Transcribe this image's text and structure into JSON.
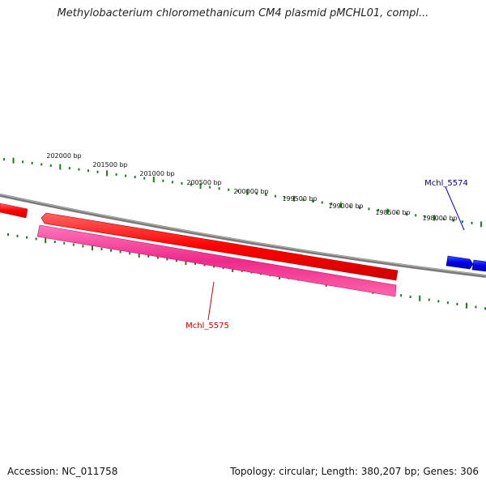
{
  "title": "Methylobacterium chloromethanicum CM4 plasmid pMCHL01, compl...",
  "footer": {
    "accession": "Accession: NC_011758",
    "topology": "Topology: circular; Length: 380,207 bp; Genes: 306"
  },
  "ruler": {
    "labels": [
      "202000 bp",
      "201500 bp",
      "201000 bp",
      "200500 bp",
      "200000 bp",
      "199500 bp",
      "199000 bp",
      "198500 bp",
      "198000 bp"
    ],
    "tick_color": "#1a7f1a"
  },
  "backbone": {
    "color": "#808080"
  },
  "genes": [
    {
      "id": "mchl-5575",
      "label": "Mchl_5575",
      "strand": "forward",
      "color": "#ff0000",
      "label_color": "#cc0000"
    },
    {
      "id": "mchl-5575-cds",
      "label": "",
      "strand": "forward",
      "color": "#ee2a8a"
    },
    {
      "id": "mchl-5574",
      "label": "Mchl_5574",
      "strand": "forward",
      "color": "#0000ee",
      "label_color": "#00008b"
    }
  ]
}
